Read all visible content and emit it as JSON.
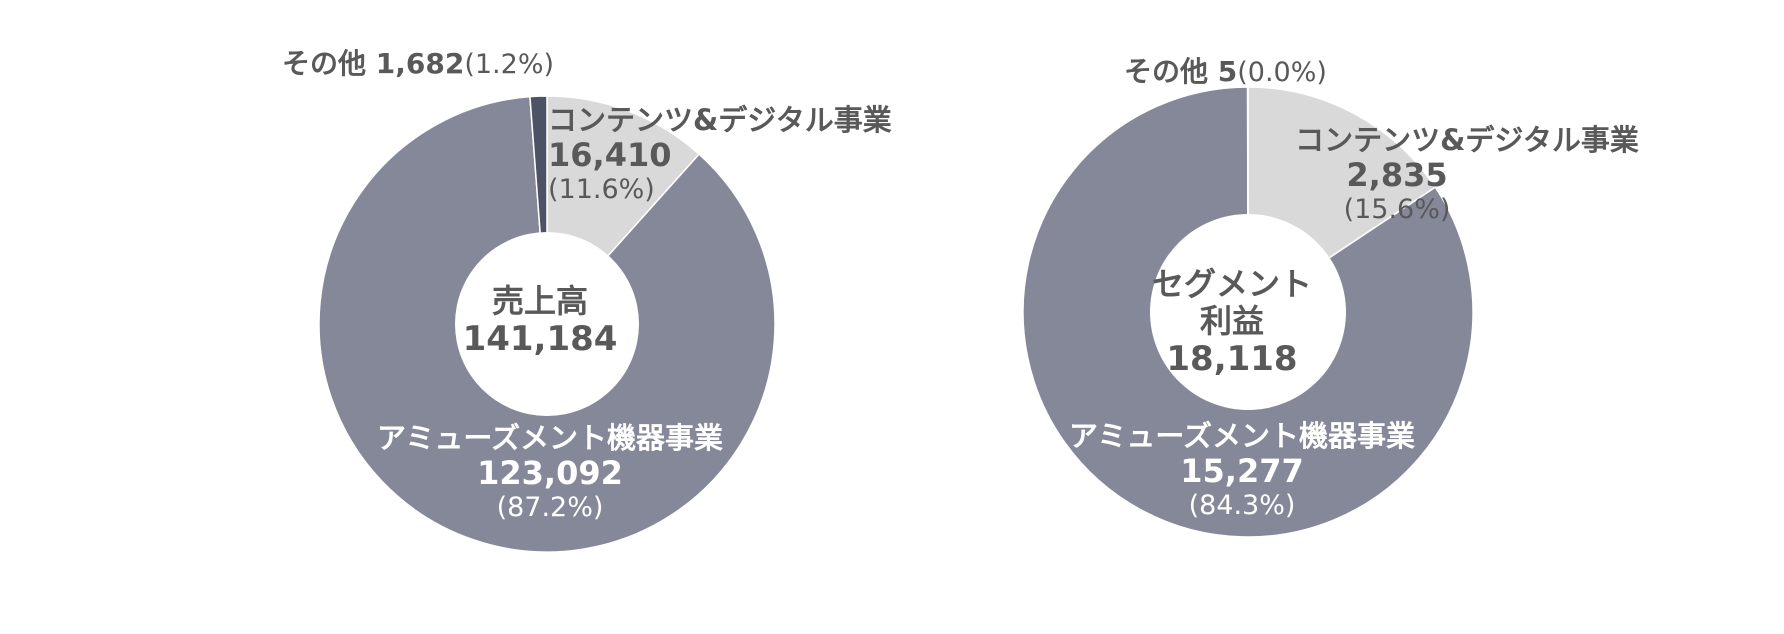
{
  "chart_data": [
    {
      "type": "pie",
      "center_title": "売上高",
      "center_value": "141,184",
      "colors": {
        "アミューズメント機器事業": "#858898",
        "コンテンツ&デジタル事業": "#d9d9d9",
        "その他": "#4d5264"
      },
      "slices": [
        {
          "label": "その他",
          "value_text": "1,682",
          "pct_text": "(1.2%)",
          "value": 1682
        },
        {
          "label": "コンテンツ&デジタル事業",
          "value_text": "16,410",
          "pct_text": "(11.6%)",
          "value": 16410
        },
        {
          "label": "アミューズメント機器事業",
          "value_text": "123,092",
          "pct_text": "(87.2%)",
          "value": 123092
        }
      ]
    },
    {
      "type": "pie",
      "center_title_line1": "セグメント",
      "center_title_line2": "利益",
      "center_value": "18,118",
      "colors": {
        "アミューズメント機器事業": "#858898",
        "コンテンツ&デジタル事業": "#d9d9d9",
        "その他": "#4d5264"
      },
      "slices": [
        {
          "label": "その他",
          "value_text": "5",
          "pct_text": "(0.0%)",
          "value": 5
        },
        {
          "label": "コンテンツ&デジタル事業",
          "value_text": "2,835",
          "pct_text": "(15.6%)",
          "value": 2835
        },
        {
          "label": "アミューズメント機器事業",
          "value_text": "15,277",
          "pct_text": "(84.3%)",
          "value": 15277
        }
      ]
    }
  ]
}
